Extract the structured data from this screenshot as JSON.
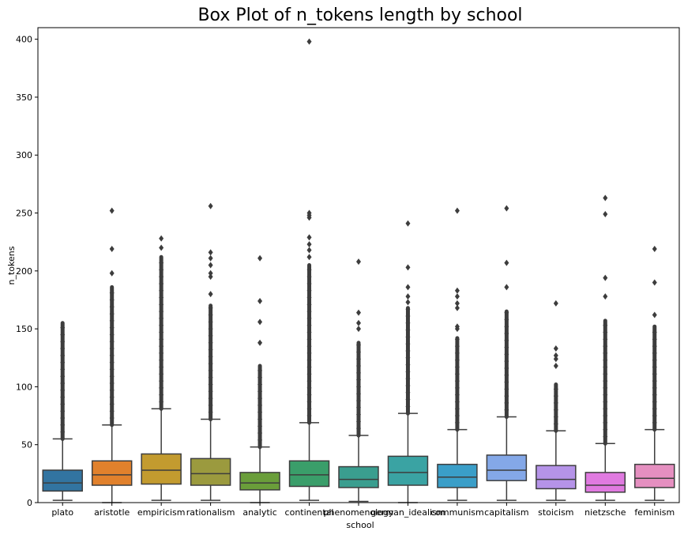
{
  "chart_data": {
    "type": "box",
    "title": "Box Plot of n_tokens length by school",
    "xlabel": "school",
    "ylabel": "n_tokens",
    "ylim": [
      0,
      410
    ],
    "yticks": [
      0,
      50,
      100,
      150,
      200,
      250,
      300,
      350,
      400
    ],
    "grid": false,
    "categories": [
      "plato",
      "aristotle",
      "empiricism",
      "rationalism",
      "analytic",
      "continental",
      "phenomenology",
      "german_idealism",
      "communism",
      "capitalism",
      "stoicism",
      "nietzsche",
      "feminism"
    ],
    "colors": [
      "#3274a1",
      "#e1812c",
      "#c39b2f",
      "#9b9a3e",
      "#6a9e3a",
      "#3a9e6a",
      "#3a9e8f",
      "#3aa3a3",
      "#3a9ec8",
      "#84a8e8",
      "#b593e8",
      "#e07ae0",
      "#e58fc0"
    ],
    "boxes": [
      {
        "min": 2,
        "q1": 10,
        "median": 17,
        "q3": 28,
        "max": 55,
        "outlier_range": [
          55,
          155
        ],
        "outliers": []
      },
      {
        "min": 0,
        "q1": 15,
        "median": 24,
        "q3": 36,
        "max": 67,
        "outlier_range": [
          67,
          186
        ],
        "outliers": [
          198,
          219,
          252
        ]
      },
      {
        "min": 2,
        "q1": 16,
        "median": 28,
        "q3": 42,
        "max": 81,
        "outlier_range": [
          81,
          212
        ],
        "outliers": [
          220,
          228
        ]
      },
      {
        "min": 2,
        "q1": 15,
        "median": 25,
        "q3": 38,
        "max": 72,
        "outlier_range": [
          72,
          170
        ],
        "outliers": [
          180,
          195,
          198,
          205,
          211,
          216,
          256
        ]
      },
      {
        "min": 0,
        "q1": 11,
        "median": 17,
        "q3": 26,
        "max": 48,
        "outlier_range": [
          48,
          118
        ],
        "outliers": [
          138,
          156,
          174,
          211
        ]
      },
      {
        "min": 2,
        "q1": 14,
        "median": 24,
        "q3": 36,
        "max": 69,
        "outlier_range": [
          69,
          205
        ],
        "outliers": [
          212,
          218,
          223,
          229,
          246,
          248,
          250,
          398
        ]
      },
      {
        "min": 1,
        "q1": 13,
        "median": 20,
        "q3": 31,
        "max": 58,
        "outlier_range": [
          58,
          138
        ],
        "outliers": [
          150,
          155,
          164,
          208
        ]
      },
      {
        "min": 0,
        "q1": 15,
        "median": 26,
        "q3": 40,
        "max": 77,
        "outlier_range": [
          77,
          168
        ],
        "outliers": [
          173,
          178,
          186,
          203,
          241
        ]
      },
      {
        "min": 2,
        "q1": 13,
        "median": 22,
        "q3": 33,
        "max": 63,
        "outlier_range": [
          63,
          142
        ],
        "outliers": [
          150,
          152,
          168,
          172,
          178,
          183,
          252
        ]
      },
      {
        "min": 2,
        "q1": 19,
        "median": 28,
        "q3": 41,
        "max": 74,
        "outlier_range": [
          74,
          165
        ],
        "outliers": [
          186,
          207,
          254
        ]
      },
      {
        "min": 2,
        "q1": 12,
        "median": 20,
        "q3": 32,
        "max": 62,
        "outlier_range": [
          62,
          102
        ],
        "outliers": [
          118,
          124,
          127,
          133,
          172
        ]
      },
      {
        "min": 2,
        "q1": 9,
        "median": 15,
        "q3": 26,
        "max": 51,
        "outlier_range": [
          51,
          157
        ],
        "outliers": [
          178,
          194,
          249,
          263
        ]
      },
      {
        "min": 2,
        "q1": 13,
        "median": 21,
        "q3": 33,
        "max": 63,
        "outlier_range": [
          63,
          152
        ],
        "outliers": [
          162,
          190,
          219
        ]
      }
    ]
  }
}
